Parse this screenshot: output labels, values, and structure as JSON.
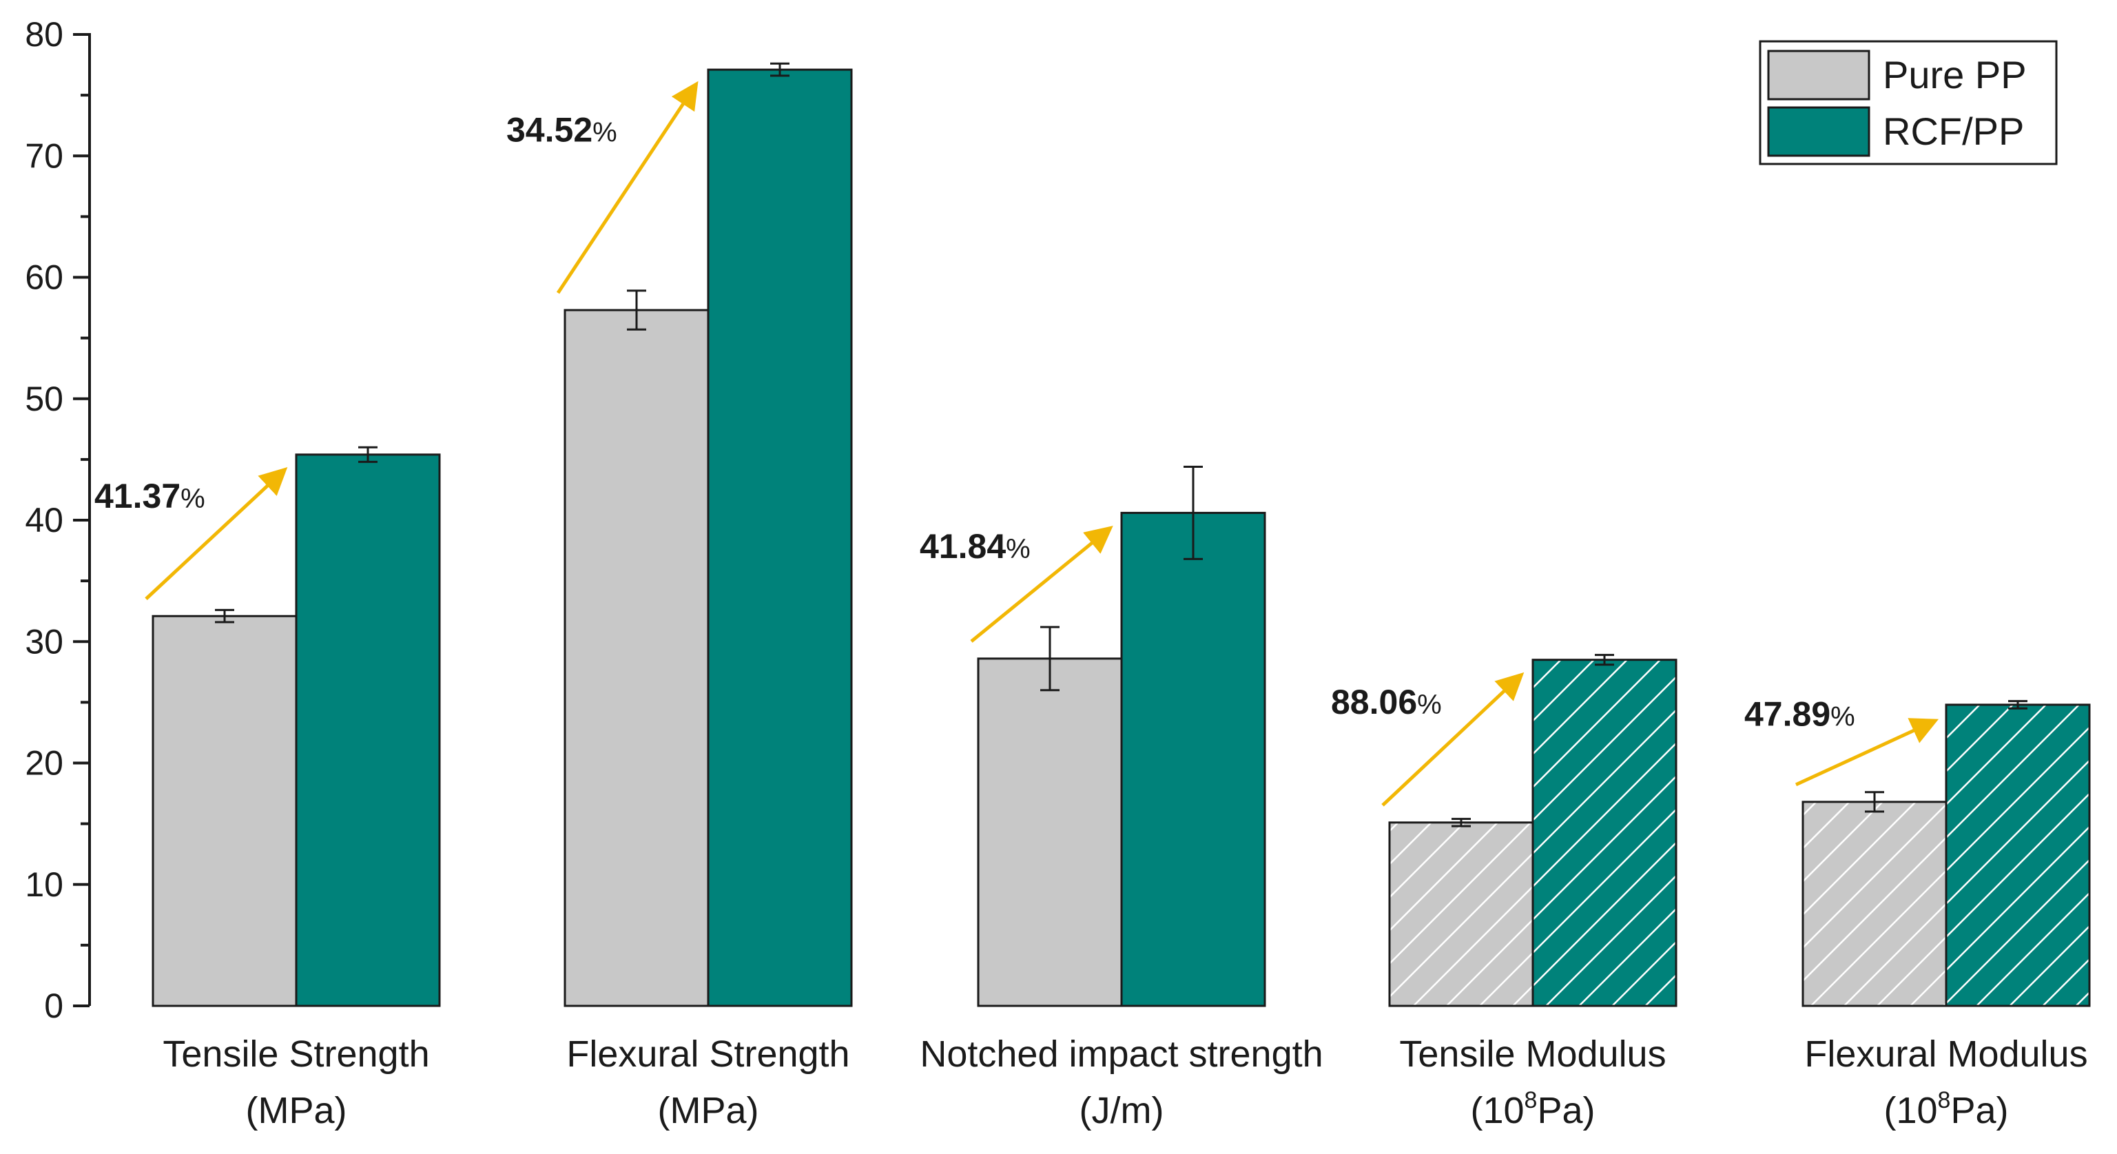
{
  "chart_data": {
    "type": "bar",
    "title": "",
    "xlabel": "",
    "ylabel": "",
    "ylim": [
      0,
      80
    ],
    "yticks": [
      0,
      10,
      20,
      30,
      40,
      50,
      60,
      70,
      80
    ],
    "categories": [
      {
        "line1": "Tensile Strength",
        "line2": "(MPa)",
        "exp": ""
      },
      {
        "line1": "Flexural Strength",
        "line2": "(MPa)",
        "exp": ""
      },
      {
        "line1": "Notched impact strength",
        "line2": "(J/m)",
        "exp": ""
      },
      {
        "line1": "Tensile Modulus",
        "line2_pre": "(10",
        "exp": "8",
        "line2_post": "Pa)"
      },
      {
        "line1": "Flexural Modulus",
        "line2_pre": "(10",
        "exp": "8",
        "line2_post": "Pa)"
      }
    ],
    "series": [
      {
        "name": "Pure PP",
        "color": "#c8c8c8",
        "values": [
          32.1,
          57.3,
          28.6,
          15.1,
          16.8
        ],
        "errors": [
          0.5,
          1.6,
          2.6,
          0.3,
          0.8
        ],
        "hatched": [
          false,
          false,
          false,
          true,
          true
        ]
      },
      {
        "name": "RCF/PP",
        "color": "#00827a",
        "values": [
          45.4,
          77.1,
          40.6,
          28.5,
          24.8
        ],
        "errors": [
          0.6,
          0.5,
          3.8,
          0.4,
          0.3
        ],
        "hatched": [
          false,
          false,
          false,
          true,
          true
        ]
      }
    ],
    "annotations": [
      {
        "text": "41.37",
        "unit": "%",
        "category": 0
      },
      {
        "text": "34.52",
        "unit": "%",
        "category": 1
      },
      {
        "text": "41.84",
        "unit": "%",
        "category": 2
      },
      {
        "text": "88.06",
        "unit": "%",
        "category": 3
      },
      {
        "text": "47.89",
        "unit": "%",
        "category": 4
      }
    ],
    "legend": {
      "position": "top-right",
      "entries": [
        "Pure PP",
        "RCF/PP"
      ]
    },
    "arrow_color": "#f2b705",
    "grid": false
  }
}
